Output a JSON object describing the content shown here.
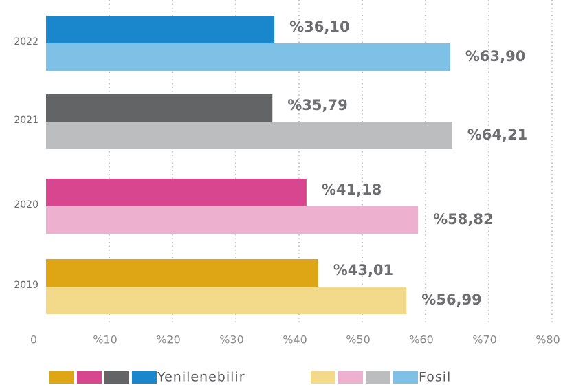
{
  "chart_data": {
    "type": "bar",
    "orientation": "horizontal",
    "categories": [
      "2022",
      "2021",
      "2020",
      "2019"
    ],
    "series": [
      {
        "name": "Yenilenebilir",
        "colors": [
          "#1a86cc",
          "#636466",
          "#d7468f",
          "#dea514"
        ],
        "values": [
          36.1,
          35.79,
          41.18,
          43.01
        ],
        "value_labels": [
          "%36,10",
          "%35,79",
          "%41,18",
          "%43,01"
        ]
      },
      {
        "name": "Fosil",
        "colors": [
          "#7fc0e6",
          "#bcbdbe",
          "#eeb0cf",
          "#f3d98a"
        ],
        "values": [
          63.9,
          64.21,
          58.82,
          56.99
        ],
        "value_labels": [
          "%63,90",
          "%64,21",
          "%58,82",
          "%56,99"
        ]
      }
    ],
    "xlim": [
      0,
      80
    ],
    "xticks": [
      0,
      {
        "value": 10,
        "label": "%10"
      },
      {
        "value": 20,
        "label": "%20"
      },
      {
        "value": 30,
        "label": "%30"
      },
      {
        "value": 40,
        "label": "%40"
      },
      {
        "value": 50,
        "label": "%50"
      },
      {
        "value": 60,
        "label": "%60"
      },
      {
        "value": 70,
        "label": "%70"
      },
      {
        "value": 80,
        "label": "%80"
      }
    ],
    "grid": true
  }
}
